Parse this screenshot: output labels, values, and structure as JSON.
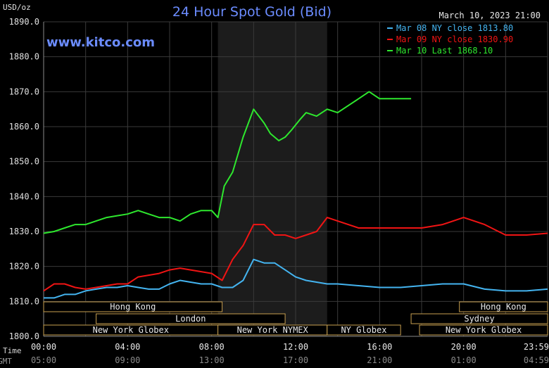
{
  "chart_data": {
    "type": "line",
    "title": "24 Hour Spot Gold (Bid)",
    "date_label": "March 10, 2023 21:00",
    "watermark": "www.kitco.com",
    "y_unit_label": "USD/oz",
    "ylim": [
      1800,
      1890
    ],
    "y_ticks": [
      "1890.0",
      "1880.0",
      "1870.0",
      "1860.0",
      "1850.0",
      "1840.0",
      "1830.0",
      "1820.0",
      "1810.0",
      "1800.0"
    ],
    "time_label": "Time",
    "gmt_label": "GMT",
    "x_ticks": [
      "00:00",
      "04:00",
      "08:00",
      "12:00",
      "16:00",
      "20:00",
      "23:59"
    ],
    "x_ticks_gmt": [
      "05:00",
      "09:00",
      "13:00",
      "17:00",
      "21:00",
      "01:00",
      "04:59"
    ],
    "grid": true,
    "legend_position": "top-right",
    "legend": [
      "Mar 08 NY close 1813.80",
      "Mar 09 NY close 1830.90",
      "Mar 10 Last 1868.10"
    ],
    "colors": {
      "blue": "#44b4f0",
      "red": "#f01414",
      "green": "#2ee82e",
      "title": "#6b8cff",
      "grid": "#3a3a3a",
      "shade": "#1c1c1c",
      "market_bar": "#c8a050"
    },
    "sessions": [
      {
        "label": "Hong Kong",
        "start": 0,
        "end": 8.5,
        "row": 0
      },
      {
        "label": "Hong Kong",
        "start": 19.8,
        "end": 24,
        "row": 0
      },
      {
        "label": "London",
        "start": 2.5,
        "end": 11.5,
        "row": 1
      },
      {
        "label": "Sydney",
        "start": 17.5,
        "end": 24,
        "row": 1
      },
      {
        "label": "New York Globex",
        "start": 0,
        "end": 8.3,
        "row": 2
      },
      {
        "label": "New York NYMEX",
        "start": 8.3,
        "end": 13.5,
        "row": 2
      },
      {
        "label": "NY Globex",
        "start": 13.5,
        "end": 17,
        "row": 2
      },
      {
        "label": "New York Globex",
        "start": 17.9,
        "end": 24,
        "row": 2
      }
    ],
    "shaded_range": [
      8.3,
      13.5
    ],
    "series": [
      {
        "name": "Mar 08 NY close 1813.80",
        "color": "#44b4f0",
        "x": [
          0,
          0.5,
          1,
          1.5,
          2,
          2.5,
          3,
          3.5,
          4,
          4.5,
          5,
          5.5,
          6,
          6.5,
          7,
          7.5,
          8,
          8.5,
          9,
          9.5,
          10,
          10.5,
          11,
          11.5,
          12,
          12.5,
          13,
          13.5,
          14,
          15,
          16,
          17,
          18,
          19,
          20,
          21,
          22,
          23,
          24
        ],
        "values": [
          1811,
          1811,
          1812,
          1812,
          1813,
          1813.5,
          1814,
          1814,
          1814.5,
          1814,
          1813.5,
          1813.5,
          1815,
          1816,
          1815.5,
          1815,
          1815,
          1814,
          1814,
          1816,
          1822,
          1821,
          1821,
          1819,
          1817,
          1816,
          1815.5,
          1815,
          1815,
          1814.5,
          1814,
          1814,
          1814.5,
          1815,
          1815,
          1813.5,
          1813,
          1813,
          1813.5
        ]
      },
      {
        "name": "Mar 09 NY close 1830.90",
        "color": "#f01414",
        "x": [
          0,
          0.5,
          1,
          1.5,
          2,
          2.5,
          3,
          3.5,
          4,
          4.5,
          5,
          5.5,
          6,
          6.5,
          7,
          7.5,
          8,
          8.5,
          9,
          9.5,
          10,
          10.5,
          11,
          11.5,
          12,
          12.5,
          13,
          13.5,
          14,
          15,
          16,
          17,
          18,
          19,
          20,
          21,
          22,
          23,
          24
        ],
        "values": [
          1813,
          1815,
          1815,
          1814,
          1813.5,
          1814,
          1814.5,
          1815,
          1815,
          1817,
          1817.5,
          1818,
          1819,
          1819.5,
          1819,
          1818.5,
          1818,
          1816,
          1822,
          1826,
          1832,
          1832,
          1829,
          1829,
          1828,
          1829,
          1830,
          1834,
          1833,
          1831,
          1831,
          1831,
          1831,
          1832,
          1834,
          1832,
          1829,
          1829,
          1829.5
        ]
      },
      {
        "name": "Mar 10 Last 1868.10",
        "color": "#2ee82e",
        "x": [
          0,
          0.5,
          1,
          1.5,
          2,
          2.5,
          3,
          3.5,
          4,
          4.5,
          5,
          5.5,
          6,
          6.5,
          7,
          7.5,
          8,
          8.3,
          8.6,
          9,
          9.5,
          10,
          10.5,
          10.8,
          11.2,
          11.5,
          11.8,
          12.2,
          12.5,
          13,
          13.5,
          14,
          14.5,
          15,
          15.5,
          16,
          16.5,
          17,
          17.5
        ],
        "values": [
          1829.5,
          1830,
          1831,
          1832,
          1832,
          1833,
          1834,
          1834.5,
          1835,
          1836,
          1835,
          1834,
          1834,
          1833,
          1835,
          1836,
          1836,
          1834,
          1843,
          1847,
          1857,
          1865,
          1861,
          1858,
          1856,
          1857,
          1859,
          1862,
          1864,
          1863,
          1865,
          1864,
          1866,
          1868,
          1870,
          1868,
          1868,
          1868,
          1868
        ]
      }
    ]
  }
}
